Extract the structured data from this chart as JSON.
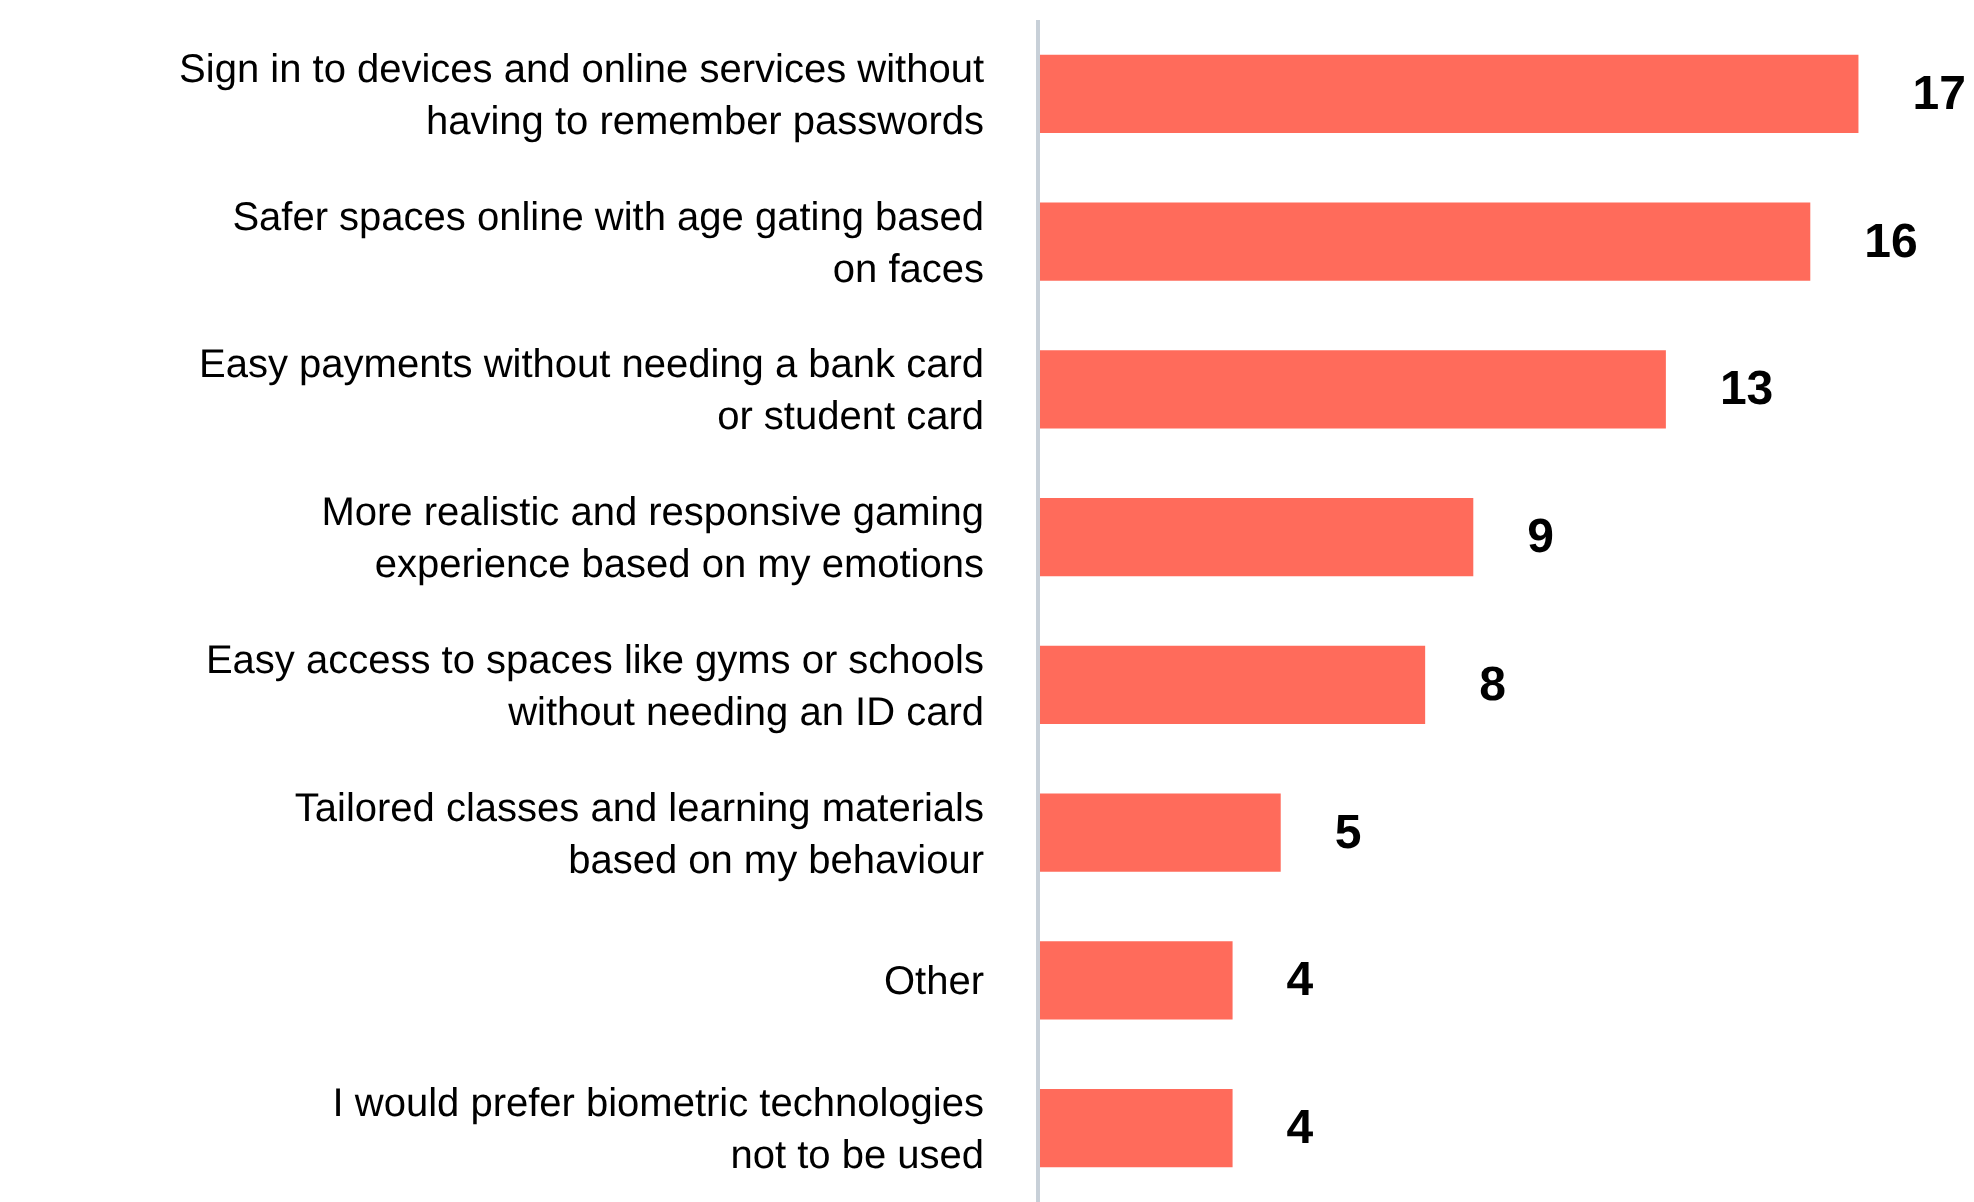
{
  "chart_data": {
    "type": "bar",
    "orientation": "horizontal",
    "categories": [
      "Sign in to devices and online services without\nhaving to remember passwords",
      "Safer spaces online with age gating based\non faces",
      "Easy payments without needing a bank card\nor student card",
      "More realistic and responsive gaming\nexperience based on my emotions",
      "Easy access to spaces like gyms or schools\nwithout needing an ID card",
      "Tailored classes and learning materials\nbased on my behaviour",
      "Other",
      "I would prefer biometric technologies\nnot to be used"
    ],
    "values": [
      17,
      16,
      13,
      9,
      8,
      5,
      4,
      4
    ],
    "color": "#ff6b5b",
    "data_labels": true,
    "xlim": [
      0,
      19.4
    ],
    "tick_labels": "y",
    "legend": false
  }
}
